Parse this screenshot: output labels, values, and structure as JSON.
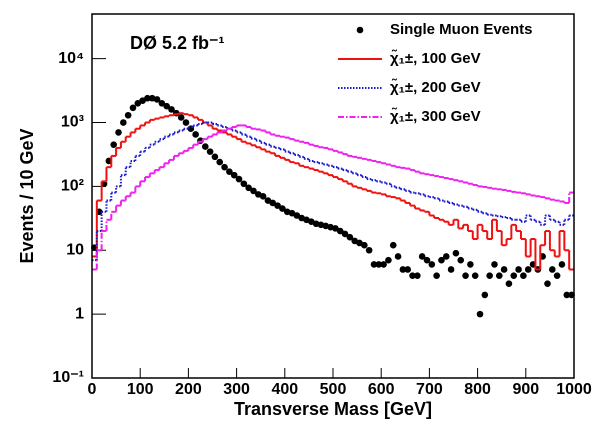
{
  "chart_data": {
    "type": "histogram",
    "annotation": "DØ 5.2 fb⁻¹",
    "x_label": "Transverse Mass [GeV]",
    "y_label": "Events / 10 GeV",
    "log_y": true,
    "legend": "top-right",
    "bins": [
      0,
      10,
      20,
      30,
      40,
      50,
      60,
      70,
      80,
      90,
      100,
      110,
      120,
      130,
      140,
      150,
      160,
      170,
      180,
      190,
      200,
      210,
      220,
      230,
      240,
      250,
      260,
      270,
      280,
      290,
      300,
      310,
      320,
      330,
      340,
      350,
      360,
      370,
      380,
      390,
      400,
      410,
      420,
      430,
      440,
      450,
      460,
      470,
      480,
      490,
      500,
      510,
      520,
      530,
      540,
      550,
      560,
      570,
      580,
      590,
      600,
      610,
      620,
      630,
      640,
      650,
      660,
      670,
      680,
      690,
      700,
      710,
      720,
      730,
      740,
      750,
      760,
      770,
      780,
      790,
      800,
      810,
      820,
      830,
      840,
      850,
      860,
      870,
      880,
      890,
      900,
      910,
      920,
      930,
      940,
      950,
      960,
      970,
      980,
      990,
      1000
    ],
    "xlim": [
      0,
      1000
    ],
    "xticks": [
      0,
      100,
      200,
      300,
      400,
      500,
      600,
      700,
      800,
      900,
      1000
    ],
    "ylim": [
      0.1,
      50000
    ],
    "yticks": [
      {
        "value": 0.1,
        "label": "10⁻¹"
      },
      1,
      10,
      {
        "value": 100,
        "label": "10²"
      },
      {
        "value": 1000,
        "label": "10³"
      },
      {
        "value": 10000,
        "label": "10⁴"
      }
    ],
    "series": [
      {
        "name": "Single Muon Events",
        "style": "dots",
        "color": "#000000",
        "values": [
          11,
          40,
          110,
          250,
          450,
          700,
          1000,
          1300,
          1700,
          2000,
          2200,
          2400,
          2400,
          2300,
          2000,
          1800,
          1600,
          1400,
          1200,
          1000,
          800,
          650,
          520,
          420,
          350,
          290,
          240,
          200,
          170,
          150,
          130,
          110,
          95,
          85,
          75,
          70,
          60,
          55,
          50,
          45,
          40,
          38,
          35,
          32,
          30,
          28,
          26,
          25,
          24,
          23,
          22,
          20,
          18,
          16,
          14,
          13,
          12,
          10,
          6,
          6,
          6,
          7,
          12,
          8,
          5,
          5,
          4,
          4,
          8,
          7,
          6,
          4,
          7,
          8,
          5,
          9,
          7,
          4,
          6,
          4,
          1,
          2,
          4,
          6,
          4,
          5,
          3,
          4,
          5,
          4,
          5,
          6,
          5,
          8,
          3,
          5,
          4,
          6,
          2,
          2
        ]
      },
      {
        "name": "χ̃₁±, 100 GeV",
        "style": "solid",
        "color": "#ee1111",
        "values": [
          8,
          60,
          120,
          200,
          300,
          400,
          500,
          600,
          700,
          800,
          900,
          1000,
          1100,
          1150,
          1200,
          1250,
          1300,
          1350,
          1400,
          1350,
          1300,
          1200,
          1100,
          1000,
          900,
          800,
          750,
          700,
          650,
          600,
          550,
          500,
          470,
          440,
          410,
          380,
          350,
          330,
          300,
          280,
          260,
          240,
          230,
          210,
          200,
          190,
          180,
          170,
          160,
          150,
          140,
          130,
          120,
          110,
          100,
          95,
          90,
          85,
          80,
          78,
          75,
          70,
          68,
          65,
          60,
          55,
          50,
          45,
          42,
          40,
          35,
          32,
          30,
          28,
          25,
          30,
          22,
          25,
          20,
          15,
          25,
          20,
          15,
          30,
          20,
          12,
          15,
          25,
          20,
          15,
          8,
          15,
          5,
          12,
          20,
          10,
          8,
          20,
          10,
          5
        ]
      },
      {
        "name": "χ̃₁±, 200 GeV",
        "style": "dotted",
        "color": "#1a1acc",
        "values": [
          7,
          20,
          40,
          60,
          80,
          100,
          150,
          200,
          250,
          300,
          350,
          400,
          450,
          500,
          550,
          600,
          650,
          700,
          750,
          800,
          850,
          900,
          950,
          1000,
          1000,
          950,
          900,
          850,
          800,
          750,
          700,
          650,
          600,
          560,
          520,
          480,
          450,
          420,
          400,
          380,
          350,
          330,
          310,
          290,
          270,
          250,
          240,
          230,
          220,
          210,
          200,
          190,
          180,
          170,
          160,
          150,
          140,
          130,
          125,
          120,
          115,
          110,
          100,
          95,
          90,
          85,
          80,
          78,
          75,
          70,
          68,
          65,
          60,
          58,
          55,
          52,
          50,
          48,
          45,
          43,
          40,
          38,
          36,
          35,
          34,
          33,
          32,
          30,
          30,
          28,
          35,
          30,
          28,
          25,
          35,
          30,
          28,
          25,
          30,
          35
        ]
      },
      {
        "name": "χ̃₁±, 300 GeV",
        "style": "dashdot",
        "color": "#ee22ee",
        "values": [
          5,
          10,
          20,
          30,
          40,
          50,
          60,
          70,
          80,
          100,
          120,
          140,
          160,
          180,
          200,
          230,
          260,
          300,
          330,
          360,
          400,
          450,
          500,
          550,
          600,
          650,
          700,
          750,
          800,
          850,
          900,
          900,
          850,
          800,
          780,
          750,
          700,
          650,
          620,
          600,
          580,
          550,
          520,
          500,
          480,
          450,
          430,
          410,
          400,
          380,
          360,
          340,
          320,
          300,
          290,
          280,
          270,
          260,
          250,
          240,
          230,
          220,
          210,
          200,
          195,
          190,
          180,
          170,
          160,
          155,
          150,
          145,
          140,
          135,
          130,
          125,
          120,
          115,
          110,
          105,
          100,
          98,
          95,
          92,
          90,
          88,
          85,
          82,
          80,
          78,
          75,
          72,
          70,
          68,
          65,
          62,
          60,
          58,
          55,
          80
        ]
      }
    ]
  }
}
